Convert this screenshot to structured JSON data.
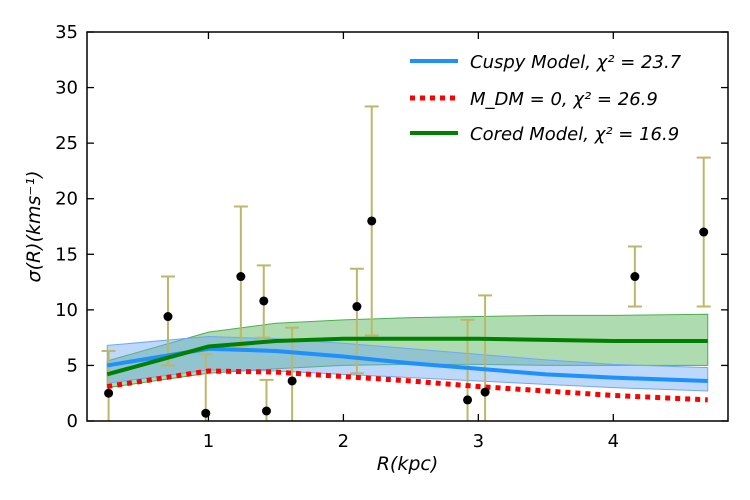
{
  "chart_data": {
    "type": "line",
    "xlabel": "R(kpc)",
    "ylabel": "σ(R)(kms⁻¹)",
    "xlim": [
      0.1,
      4.85
    ],
    "ylim": [
      0,
      35
    ],
    "xticks": [
      1,
      2,
      3,
      4
    ],
    "yticks": [
      0,
      5,
      10,
      15,
      20,
      25,
      30,
      35
    ],
    "legend_position": "top-right",
    "series": [
      {
        "name": "Cuspy Model, χ² = 23.7",
        "color": "#1e90ff",
        "style": "solid",
        "x": [
          0.25,
          1.0,
          1.5,
          2.0,
          2.5,
          3.0,
          3.5,
          4.0,
          4.7
        ],
        "y": [
          5.0,
          6.5,
          6.3,
          5.8,
          5.2,
          4.7,
          4.2,
          3.9,
          3.6
        ],
        "band_lower": [
          3.4,
          4.6,
          4.5,
          4.2,
          3.9,
          3.6,
          3.3,
          3.0,
          2.7
        ],
        "band_upper": [
          6.8,
          7.6,
          7.4,
          7.0,
          6.5,
          6.0,
          5.5,
          5.1,
          4.8
        ]
      },
      {
        "name": "M_DM = 0, χ² = 26.9",
        "color": "#ff0000",
        "style": "dotted",
        "x": [
          0.25,
          1.0,
          1.5,
          2.0,
          2.5,
          3.0,
          3.5,
          4.0,
          4.7
        ],
        "y": [
          3.1,
          4.5,
          4.4,
          4.0,
          3.6,
          3.1,
          2.7,
          2.3,
          1.9
        ]
      },
      {
        "name": "Cored Model, χ² = 16.9",
        "color": "#008000",
        "style": "solid",
        "x": [
          0.25,
          1.0,
          1.5,
          2.0,
          2.5,
          3.0,
          3.5,
          4.0,
          4.7
        ],
        "y": [
          4.2,
          6.7,
          7.2,
          7.4,
          7.4,
          7.4,
          7.3,
          7.2,
          7.2
        ],
        "band_lower": [
          3.0,
          4.3,
          4.7,
          5.0,
          5.1,
          5.1,
          5.0,
          5.0,
          5.0
        ],
        "band_upper": [
          5.4,
          8.0,
          8.8,
          9.1,
          9.3,
          9.4,
          9.5,
          9.5,
          9.6
        ]
      }
    ],
    "data_points": [
      {
        "x": 0.26,
        "y": 2.5,
        "err_low": 2.5,
        "err_high": 3.8
      },
      {
        "x": 0.7,
        "y": 9.4,
        "err_low": 4.4,
        "err_high": 3.6
      },
      {
        "x": 0.98,
        "y": 0.7,
        "err_low": 0.7,
        "err_high": 5.3
      },
      {
        "x": 1.24,
        "y": 13.0,
        "err_low": 6.3,
        "err_high": 6.3
      },
      {
        "x": 1.41,
        "y": 10.8,
        "err_low": 3.3,
        "err_high": 3.2
      },
      {
        "x": 1.43,
        "y": 0.9,
        "err_low": 0.9,
        "err_high": 2.8
      },
      {
        "x": 1.62,
        "y": 3.6,
        "err_low": 3.6,
        "err_high": 4.8
      },
      {
        "x": 2.1,
        "y": 10.3,
        "err_low": 6.0,
        "err_high": 3.4
      },
      {
        "x": 2.21,
        "y": 18.0,
        "err_low": 10.3,
        "err_high": 10.3
      },
      {
        "x": 2.92,
        "y": 1.9,
        "err_low": 1.9,
        "err_high": 7.2
      },
      {
        "x": 3.05,
        "y": 2.6,
        "err_low": 2.6,
        "err_high": 8.7
      },
      {
        "x": 4.16,
        "y": 13.0,
        "err_low": 2.7,
        "err_high": 2.7
      },
      {
        "x": 4.67,
        "y": 17.0,
        "err_low": 6.7,
        "err_high": 6.7
      }
    ],
    "colors": {
      "errorbar": "#bdb76b",
      "points": "#000000",
      "cuspy_band": "#6fa8f5",
      "cored_band": "#4caf50"
    }
  }
}
